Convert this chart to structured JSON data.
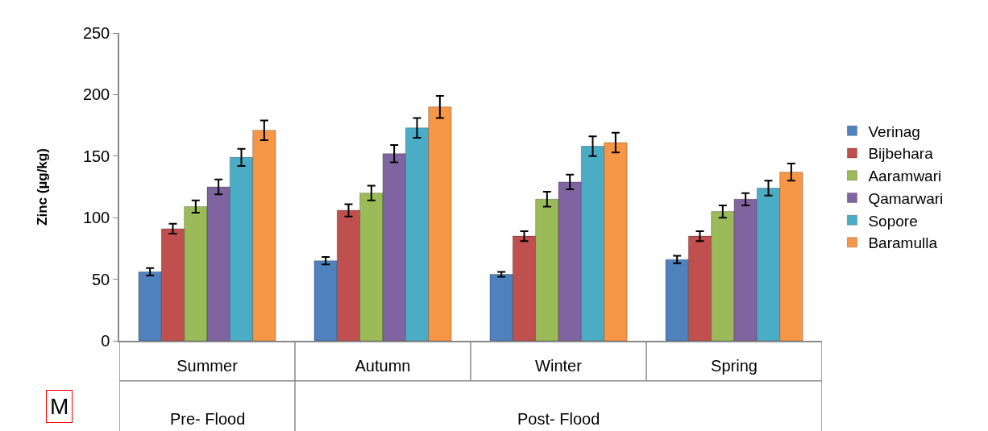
{
  "chart_data": {
    "type": "bar",
    "ylabel": "Zinc (µg/kg)",
    "categories": [
      "Summer",
      "Autumn",
      "Winter",
      "Spring"
    ],
    "series": [
      {
        "name": "Verinag",
        "color": "#4f81bd",
        "values": [
          56,
          65,
          54,
          66
        ],
        "errors": [
          3,
          3,
          2,
          3
        ]
      },
      {
        "name": "Bijbehara",
        "color": "#c0504d",
        "values": [
          91,
          106,
          85,
          85
        ],
        "errors": [
          4,
          5,
          4,
          4
        ]
      },
      {
        "name": "Aaramwari",
        "color": "#9bbb59",
        "values": [
          109,
          120,
          115,
          105
        ],
        "errors": [
          5,
          6,
          6,
          5
        ]
      },
      {
        "name": "Qamarwari",
        "color": "#8064a2",
        "values": [
          125,
          152,
          129,
          115
        ],
        "errors": [
          6,
          7,
          6,
          5
        ]
      },
      {
        "name": "Sopore",
        "color": "#4bacc6",
        "values": [
          149,
          173,
          158,
          124
        ],
        "errors": [
          7,
          8,
          8,
          6
        ]
      },
      {
        "name": "Baramulla",
        "color": "#f79646",
        "values": [
          171,
          190,
          161,
          137
        ],
        "errors": [
          8,
          9,
          8,
          7
        ]
      }
    ],
    "ylim": [
      0,
      250
    ],
    "yticks": [
      0,
      50,
      100,
      150,
      200,
      250
    ],
    "grid": false,
    "legend": "right",
    "annotations": [
      "M",
      "Pre- Flood",
      "Post- Flood"
    ]
  }
}
